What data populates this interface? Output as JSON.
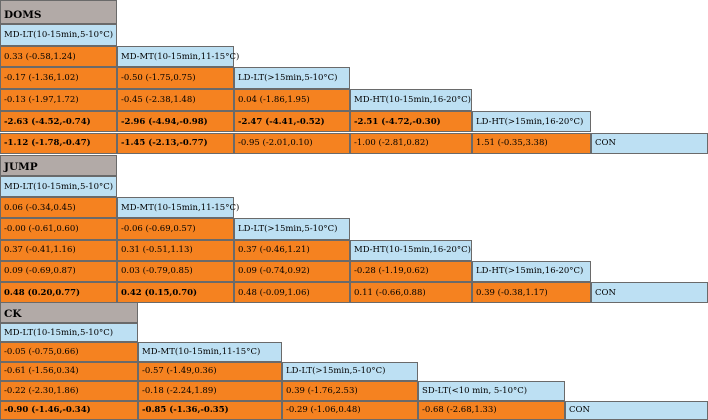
{
  "colors": {
    "header": "#b2aaa7",
    "treatment": "#bde0f3",
    "comparison": "#f58220"
  },
  "sections": [
    {
      "title": "DOMS",
      "treatments": [
        "MD-LT(10-15min,5-10°C)",
        "MD-MT(10-15min,11-15°C)",
        "LD-LT(>15min,5-10°C)",
        "MD-HT(10-15min,16-20°C)",
        "LD-HT(>15min,16-20°C)",
        "CON"
      ],
      "rows": [
        [
          {
            "v": "0.33 (-0.58,1.24)",
            "b": false
          }
        ],
        [
          {
            "v": "-0.17 (-1.36,1.02)",
            "b": false
          },
          {
            "v": "-0.50 (-1.75,0.75)",
            "b": false
          }
        ],
        [
          {
            "v": "-0.13 (-1.97,1.72)",
            "b": false
          },
          {
            "v": "-0.45 (-2.38,1.48)",
            "b": false
          },
          {
            "v": "0.04 (-1.86,1.95)",
            "b": false
          }
        ],
        [
          {
            "v": "-2.63 (-4.52,-0.74)",
            "b": true
          },
          {
            "v": "-2.96 (-4.94,-0.98)",
            "b": true
          },
          {
            "v": "-2.47 (-4.41,-0.52)",
            "b": true
          },
          {
            "v": "-2.51 (-4.72,-0.30)",
            "b": true
          }
        ],
        [
          {
            "v": "-1.12 (-1.78,-0.47)",
            "b": true
          },
          {
            "v": "-1.45 (-2.13,-0.77)",
            "b": true
          },
          {
            "v": "-0.95 (-2.01,0.10)",
            "b": false
          },
          {
            "v": "-1.00 (-2.81,0.82)",
            "b": false
          },
          {
            "v": "1.51 (-0.35,3.38)",
            "b": false
          }
        ]
      ]
    },
    {
      "title": "JUMP",
      "treatments": [
        "MD-LT(10-15min,5-10°C)",
        "MD-MT(10-15min,11-15°C)",
        "LD-LT(>15min,5-10°C)",
        "MD-HT(10-15min,16-20°C)",
        "LD-HT(>15min,16-20°C)",
        "CON"
      ],
      "rows": [
        [
          {
            "v": "0.06 (-0.34,0.45)",
            "b": false
          }
        ],
        [
          {
            "v": "-0.00 (-0.61,0.60)",
            "b": false
          },
          {
            "v": "-0.06 (-0.69,0.57)",
            "b": false
          }
        ],
        [
          {
            "v": "0.37 (-0.41,1.16)",
            "b": false
          },
          {
            "v": "0.31 (-0.51,1.13)",
            "b": false
          },
          {
            "v": "0.37 (-0.46,1.21)",
            "b": false
          }
        ],
        [
          {
            "v": "0.09 (-0.69,0.87)",
            "b": false
          },
          {
            "v": "0.03 (-0.79,0.85)",
            "b": false
          },
          {
            "v": "0.09 (-0.74,0.92)",
            "b": false
          },
          {
            "v": "-0.28 (-1.19,0.62)",
            "b": false
          }
        ],
        [
          {
            "v": "0.48 (0.20,0.77)",
            "b": true
          },
          {
            "v": "0.42 (0.15,0.70)",
            "b": true
          },
          {
            "v": "0.48 (-0.09,1.06)",
            "b": false
          },
          {
            "v": "0.11 (-0.66,0.88)",
            "b": false
          },
          {
            "v": "0.39 (-0.38,1.17)",
            "b": false
          }
        ]
      ]
    },
    {
      "title": "CK",
      "treatments": [
        "MD-LT(10-15min,5-10°C)",
        "MD-MT(10-15min,11-15°C)",
        "LD-LT(>15min,5-10°C)",
        "SD-LT(<10 min, 5-10°C)",
        "CON"
      ],
      "rows": [
        [
          {
            "v": "-0.05 (-0.75,0.66)",
            "b": false
          }
        ],
        [
          {
            "v": "-0.61 (-1.56,0.34)",
            "b": false
          },
          {
            "v": "-0.57 (-1.49,0.36)",
            "b": false
          }
        ],
        [
          {
            "v": "-0.22 (-2.30,1.86)",
            "b": false
          },
          {
            "v": "-0.18 (-2.24,1.89)",
            "b": false
          },
          {
            "v": "0.39 (-1.76,2.53)",
            "b": false
          }
        ],
        [
          {
            "v": "-0.90 (-1.46,-0.34)",
            "b": true
          },
          {
            "v": "-0.85 (-1.36,-0.35)",
            "b": true
          },
          {
            "v": "-0.29 (-1.06,0.48)",
            "b": false
          },
          {
            "v": "-0.68 (-2.68,1.33)",
            "b": false
          }
        ]
      ]
    }
  ]
}
